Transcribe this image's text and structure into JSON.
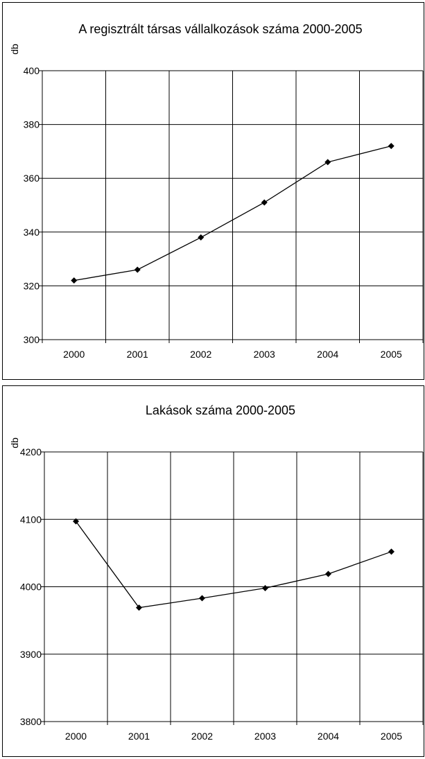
{
  "chart_data": [
    {
      "type": "line",
      "title": "A regisztrált társas vállalkozások száma 2000-2005",
      "ylabel": "db",
      "xlabel": "",
      "categories": [
        "2000",
        "2001",
        "2002",
        "2003",
        "2004",
        "2005"
      ],
      "series": [
        {
          "values": [
            322,
            326,
            338,
            351,
            366,
            372
          ]
        }
      ],
      "ylim": [
        300,
        400
      ],
      "yticks": [
        "300",
        "320",
        "340",
        "360",
        "380",
        "400"
      ],
      "grid": true,
      "legend": "none",
      "color": "#000000"
    },
    {
      "type": "line",
      "title": "Lakások száma 2000-2005",
      "ylabel": "db",
      "xlabel": "",
      "categories": [
        "2000",
        "2001",
        "2002",
        "2003",
        "2004",
        "2005"
      ],
      "series": [
        {
          "values": [
            4097,
            3969,
            3983,
            3998,
            4019,
            4052
          ]
        }
      ],
      "ylim": [
        3800,
        4200
      ],
      "yticks": [
        "3800",
        "3900",
        "4000",
        "4100",
        "4200"
      ],
      "grid": true,
      "legend": "none",
      "color": "#000000"
    }
  ]
}
